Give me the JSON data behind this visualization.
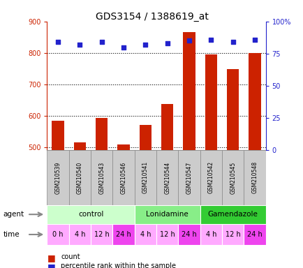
{
  "title": "GDS3154 / 1388619_at",
  "samples": [
    "GSM210539",
    "GSM210540",
    "GSM210543",
    "GSM210546",
    "GSM210541",
    "GSM210544",
    "GSM210547",
    "GSM210542",
    "GSM210545",
    "GSM210548"
  ],
  "counts": [
    583,
    515,
    592,
    507,
    570,
    637,
    866,
    795,
    748,
    800
  ],
  "percentiles": [
    84,
    82,
    84,
    80,
    82,
    83,
    85,
    86,
    84,
    86
  ],
  "ylim_left": [
    490,
    900
  ],
  "ylim_right": [
    0,
    100
  ],
  "yticks_left": [
    500,
    600,
    700,
    800,
    900
  ],
  "yticks_right": [
    0,
    25,
    50,
    75,
    100
  ],
  "bar_color": "#cc2200",
  "dot_color": "#2222cc",
  "agent_groups": [
    {
      "label": "control",
      "start": 0,
      "end": 4,
      "color": "#ccffcc"
    },
    {
      "label": "Lonidamine",
      "start": 4,
      "end": 7,
      "color": "#88ee88"
    },
    {
      "label": "Gamendazole",
      "start": 7,
      "end": 10,
      "color": "#33cc33"
    }
  ],
  "time_labels": [
    "0 h",
    "4 h",
    "12 h",
    "24 h",
    "4 h",
    "12 h",
    "24 h",
    "4 h",
    "12 h",
    "24 h"
  ],
  "time_colors": [
    "#ffaaff",
    "#ffaaff",
    "#ffaaff",
    "#ee44ee",
    "#ffaaff",
    "#ffaaff",
    "#ee44ee",
    "#ffaaff",
    "#ffaaff",
    "#ee44ee"
  ],
  "sample_box_color": "#cccccc",
  "sample_box_edge": "#888888",
  "bg_color": "#ffffff",
  "left_axis_color": "#cc2200",
  "right_axis_color": "#2222cc",
  "left_label": "agent",
  "time_label": "time"
}
